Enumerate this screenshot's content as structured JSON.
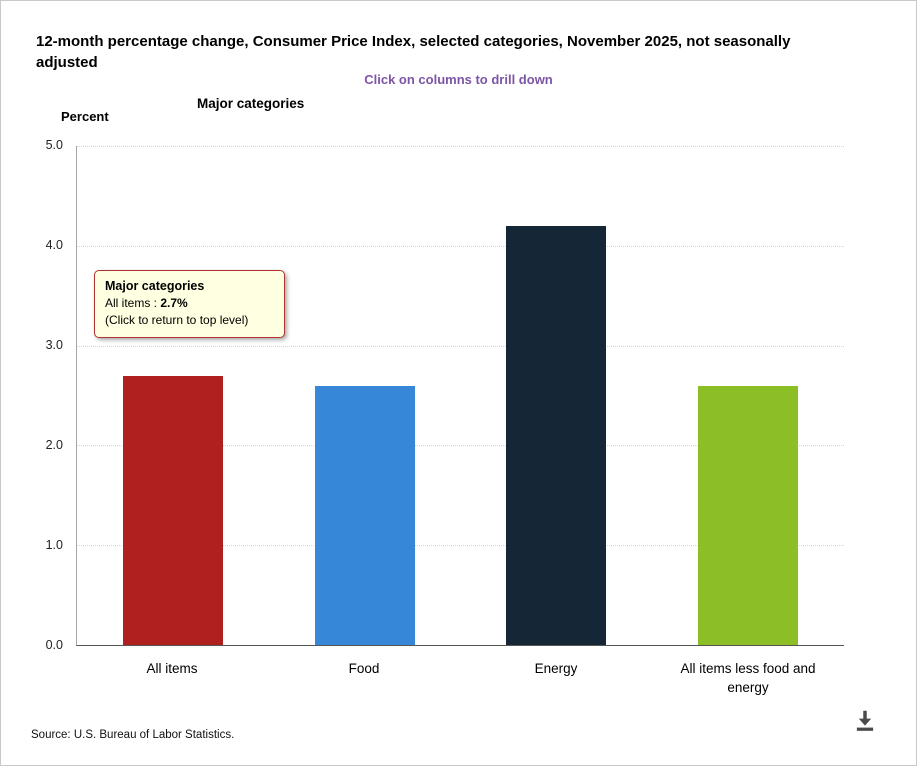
{
  "header": {
    "title": "12-month percentage change, Consumer Price Index, selected categories, November 2025, not seasonally adjusted",
    "hint": "Click on columns to drill down"
  },
  "chart_data": {
    "type": "bar",
    "title": "Major categories",
    "ylabel": "Percent",
    "xlabel": "",
    "ylim": [
      0,
      5
    ],
    "ytick_step": 1,
    "grid": true,
    "legend": false,
    "categories": [
      "All items",
      "Food",
      "Energy",
      "All items less food and energy"
    ],
    "values": [
      2.7,
      2.6,
      4.2,
      2.6
    ],
    "colors": [
      "#b0201f",
      "#3787d9",
      "#152636",
      "#8cbf26"
    ]
  },
  "tooltip": {
    "title": "Major categories",
    "label": "All items : ",
    "value": "2.7%",
    "note": "(Click to return to top level)"
  },
  "footer": {
    "source": "Source: U.S. Bureau of Labor Statistics."
  },
  "icons": {
    "download": "download-icon"
  }
}
